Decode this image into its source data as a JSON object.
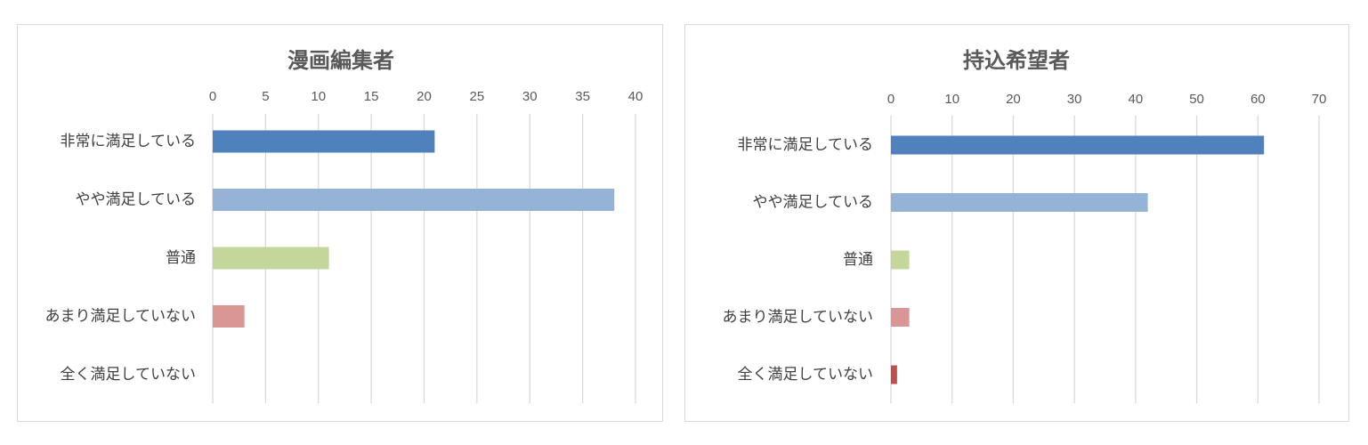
{
  "chart_data": [
    {
      "type": "bar",
      "orientation": "horizontal",
      "title": "漫画編集者",
      "categories": [
        "非常に満足している",
        "やや満足している",
        "普通",
        "あまり満足していない",
        "全く満足していない"
      ],
      "values": [
        21,
        38,
        11,
        3,
        0
      ],
      "colors": [
        "#4f81bd",
        "#95b3d7",
        "#c4d79b",
        "#da9694",
        "#c0504d"
      ],
      "xlim": [
        0,
        40
      ],
      "xticks": [
        0,
        5,
        10,
        15,
        20,
        25,
        30,
        35,
        40
      ],
      "xaxis_position": "top",
      "grid": true,
      "legend": "none"
    },
    {
      "type": "bar",
      "orientation": "horizontal",
      "title": "持込希望者",
      "categories": [
        "非常に満足している",
        "やや満足している",
        "普通",
        "あまり満足していない",
        "全く満足していない"
      ],
      "values": [
        61,
        42,
        3,
        3,
        1
      ],
      "colors": [
        "#4f81bd",
        "#95b3d7",
        "#c4d79b",
        "#da9694",
        "#c0504d"
      ],
      "xlim": [
        0,
        70
      ],
      "xticks": [
        0,
        10,
        20,
        30,
        40,
        50,
        60,
        70
      ],
      "xaxis_position": "top",
      "grid": true,
      "legend": "none"
    }
  ]
}
